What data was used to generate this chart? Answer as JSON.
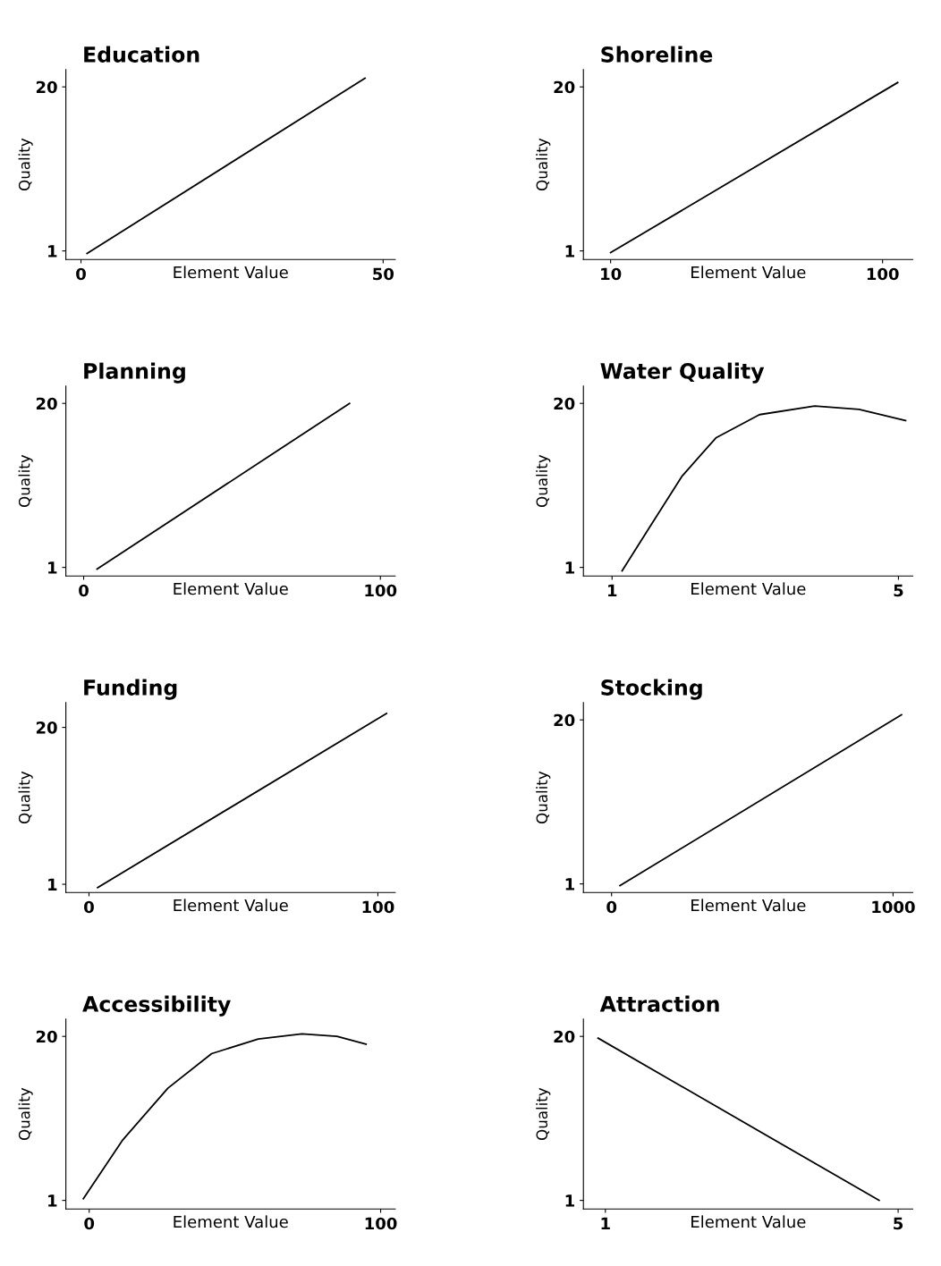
{
  "chart_data": [
    {
      "type": "line",
      "title": "Education",
      "xlabel": "Element Value",
      "ylabel": "Quality",
      "x": [
        1,
        47
      ],
      "series": [
        {
          "color": "#000000",
          "values": [
            0.7,
            21
          ]
        }
      ],
      "xlim": [
        -2.5,
        52
      ],
      "ylim": [
        0,
        22
      ],
      "xticks": [
        0,
        50
      ],
      "yticks": [
        1,
        20
      ],
      "grid": false
    },
    {
      "type": "line",
      "title": "Shoreline",
      "xlabel": "Element Value",
      "ylabel": "Quality",
      "x": [
        10,
        105
      ],
      "series": [
        {
          "color": "#000000",
          "values": [
            0.8,
            20.5
          ]
        }
      ],
      "xlim": [
        1,
        110
      ],
      "ylim": [
        0,
        22
      ],
      "xticks": [
        10,
        100
      ],
      "yticks": [
        1,
        20
      ],
      "grid": false
    },
    {
      "type": "line",
      "title": "Planning",
      "xlabel": "Element Value",
      "ylabel": "Quality",
      "x": [
        4.5,
        89.6
      ],
      "series": [
        {
          "color": "#000000",
          "values": [
            0.8,
            20
          ]
        }
      ],
      "xlim": [
        -6,
        105
      ],
      "ylim": [
        0,
        22
      ],
      "xticks": [
        0,
        100
      ],
      "yticks": [
        1,
        20
      ],
      "grid": false
    },
    {
      "type": "line",
      "title": "Water Quality",
      "xlabel": "Element Value",
      "ylabel": "Quality",
      "x": [
        1.14,
        1.52,
        1.98,
        2.45,
        3.06,
        3.83,
        4.45,
        5.1
      ],
      "series": [
        {
          "color": "#000000",
          "values": [
            0.6,
            5.6,
            11.6,
            16,
            18.7,
            19.7,
            19.3,
            18
          ]
        }
      ],
      "xlim": [
        0.6,
        5.2
      ],
      "ylim": [
        0,
        22
      ],
      "xticks": [
        1,
        5
      ],
      "yticks": [
        1,
        20
      ],
      "grid": false
    },
    {
      "type": "line",
      "title": "Funding",
      "xlabel": "Element Value",
      "ylabel": "Quality",
      "x": [
        3,
        103
      ],
      "series": [
        {
          "color": "#000000",
          "values": [
            0.6,
            21.7
          ]
        }
      ],
      "xlim": [
        -8,
        106
      ],
      "ylim": [
        0,
        23
      ],
      "xticks": [
        0,
        100
      ],
      "yticks": [
        1,
        20
      ],
      "grid": false
    },
    {
      "type": "line",
      "title": "Stocking",
      "xlabel": "Element Value",
      "ylabel": "Quality",
      "x": [
        30,
        1030
      ],
      "series": [
        {
          "color": "#000000",
          "values": [
            0.8,
            20.6
          ]
        }
      ],
      "xlim": [
        -100,
        1070
      ],
      "ylim": [
        0,
        22
      ],
      "xticks": [
        0,
        1000
      ],
      "yticks": [
        1,
        20
      ],
      "grid": false
    },
    {
      "type": "line",
      "title": "Accessibility",
      "xlabel": "Element Value",
      "ylabel": "Quality",
      "x": [
        -2,
        11.5,
        27,
        42,
        58,
        73,
        85,
        95
      ],
      "series": [
        {
          "color": "#000000",
          "values": [
            1.2,
            8,
            14,
            18,
            19.7,
            20.3,
            20,
            19.1
          ]
        }
      ],
      "xlim": [
        -8,
        105
      ],
      "ylim": [
        0,
        22
      ],
      "xticks": [
        0,
        100
      ],
      "yticks": [
        1,
        20
      ],
      "grid": false
    },
    {
      "type": "line",
      "title": "Attraction",
      "xlabel": "Element Value",
      "ylabel": "Quality",
      "x": [
        0.9,
        4.74
      ],
      "series": [
        {
          "color": "#000000",
          "values": [
            19.8,
            1
          ]
        }
      ],
      "xlim": [
        0.7,
        5.2
      ],
      "ylim": [
        0,
        22
      ],
      "xticks": [
        1,
        5
      ],
      "yticks": [
        1,
        20
      ],
      "grid": false
    }
  ]
}
